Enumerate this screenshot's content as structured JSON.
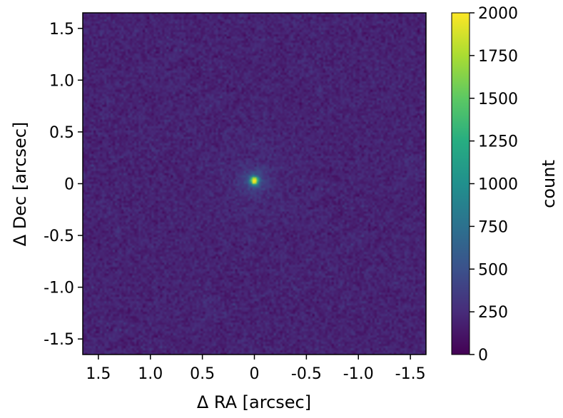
{
  "chart_data": {
    "type": "heatmap",
    "title": "",
    "xlabel": "Δ RA [arcsec]",
    "ylabel": "Δ Dec [arcsec]",
    "colorbar_label": "count",
    "x_inverted": true,
    "xlim": [
      1.65,
      -1.65
    ],
    "ylim": [
      -1.65,
      1.65
    ],
    "x_ticks": [
      1.5,
      1.0,
      0.5,
      0,
      -0.5,
      -1.0,
      -1.5
    ],
    "x_tick_labels": [
      "1.5",
      "1.0",
      "0.5",
      "0",
      "-0.5",
      "-1.0",
      "-1.5"
    ],
    "y_ticks": [
      1.5,
      1.0,
      0.5,
      0,
      -0.5,
      -1.0,
      -1.5
    ],
    "y_tick_labels": [
      "1.5",
      "1.0",
      "0.5",
      "0",
      "-0.5",
      "-1.0",
      "-1.5"
    ],
    "colorbar_range": [
      0,
      2000
    ],
    "colorbar_ticks": [
      0,
      250,
      500,
      750,
      1000,
      1250,
      1500,
      1750,
      2000
    ],
    "colorbar_tick_labels": [
      "0",
      "250",
      "500",
      "750",
      "1000",
      "1250",
      "1500",
      "1750",
      "2000"
    ],
    "colormap": "viridis",
    "background_level": 200,
    "source": {
      "ra": 0,
      "dec": 0.03,
      "peak": 2000
    },
    "grid": false
  }
}
